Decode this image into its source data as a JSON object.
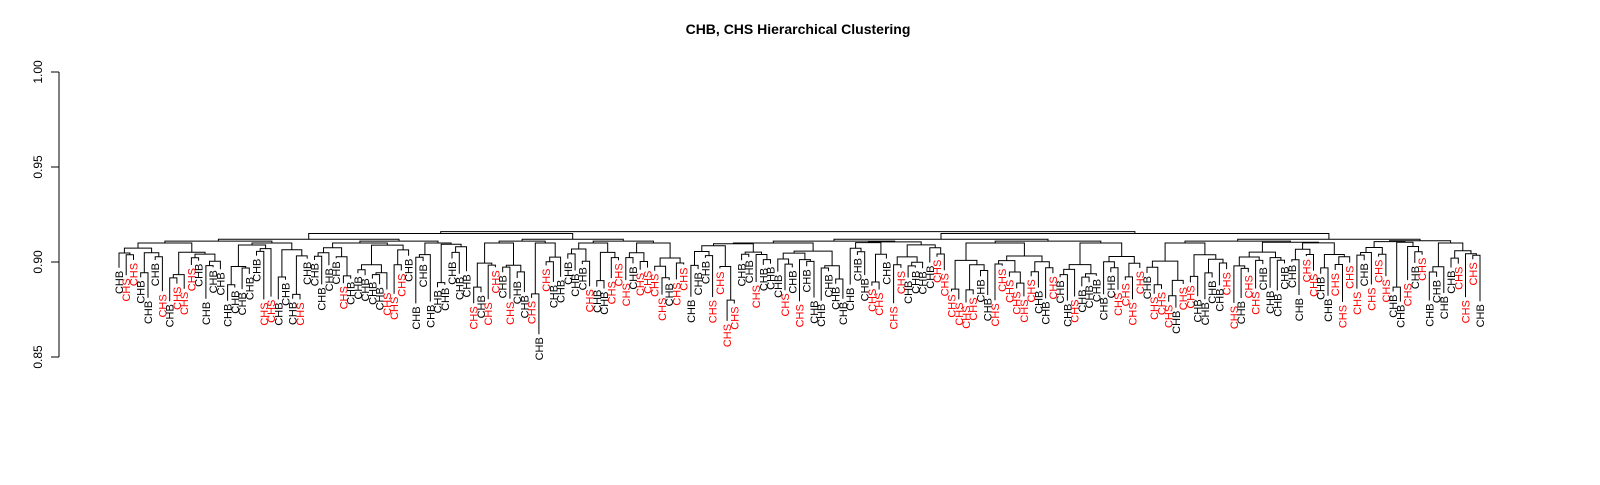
{
  "chart_data": {
    "type": "dendrogram",
    "title": "CHB, CHS Hierarchical Clustering",
    "xlabel": "",
    "ylabel": "",
    "ylim": [
      0.85,
      1.0
    ],
    "yticks": [
      0.85,
      0.9,
      0.95,
      1.0
    ],
    "ytick_labels": [
      "0.85",
      "0.90",
      "0.95",
      "1.00"
    ],
    "grid": false,
    "groups": [
      {
        "name": "CHB",
        "color": "#000000"
      },
      {
        "name": "CHS",
        "color": "#FF0000"
      }
    ],
    "root_height": 0.916,
    "top_split_heights": [
      0.916,
      0.915,
      0.912,
      0.911,
      0.91
    ],
    "outlier_leaves": [
      {
        "label": "CHS",
        "merge_height": 0.862
      },
      {
        "label": "CHS",
        "merge_height": 0.876
      },
      {
        "label": "CHS",
        "merge_height": 0.869
      },
      {
        "label": "CHS",
        "merge_height": 0.885
      }
    ],
    "typical_leaf_merge_range": [
      0.878,
      0.904
    ],
    "leaves": [
      "CHB",
      "CHS",
      "CHS",
      "CHB",
      "CHB",
      "CHB",
      "CHS",
      "CHB",
      "CHS",
      "CHS",
      "CHS",
      "CHB",
      "CHB",
      "CHB",
      "CHB",
      "CHB",
      "CHB",
      "CHB",
      "CHB",
      "CHB",
      "CHS",
      "CHS",
      "CHB",
      "CHB",
      "CHB",
      "CHS",
      "CHB",
      "CHB",
      "CHB",
      "CHB",
      "CHB",
      "CHS",
      "CHB",
      "CHB",
      "CHB",
      "CHB",
      "CHB",
      "CHS",
      "CHS",
      "CHS",
      "CHB",
      "CHB",
      "CHB",
      "CHB",
      "CHB",
      "CHB",
      "CHB",
      "CHB",
      "CHB",
      "CHS",
      "CHB",
      "CHS",
      "CHS",
      "CHB",
      "CHS",
      "CHB",
      "CHB",
      "CHS",
      "CHB",
      "CHS",
      "CHB",
      "CHB",
      "CHB",
      "CHB",
      "CHB",
      "CHS",
      "CHB",
      "CHB",
      "CHS",
      "CHS",
      "CHS",
      "CHB",
      "CHS",
      "CHS",
      "CHS",
      "CHS",
      "CHB",
      "CHS",
      "CHS",
      "CHB",
      "CHB",
      "CHB",
      "CHS",
      "CHS",
      "CHS",
      "CHS",
      "CHB",
      "CHB",
      "CHS",
      "CHB",
      "CHB",
      "CHB",
      "CHS",
      "CHB",
      "CHS",
      "CHB",
      "CHB",
      "CHB",
      "CHB",
      "CHB",
      "CHB",
      "CHB",
      "CHB",
      "CHB",
      "CHS",
      "CHS",
      "CHB",
      "CHS",
      "CHS",
      "CHB",
      "CHB",
      "CHB",
      "CHB",
      "CHS",
      "CHS",
      "CHS",
      "CHS",
      "CHS",
      "CHS",
      "CHB",
      "CHB",
      "CHS",
      "CHS",
      "CHS",
      "CHS",
      "CHS",
      "CHS",
      "CHB",
      "CHB",
      "CHS",
      "CHB",
      "CHB",
      "CHS",
      "CHB",
      "CHB",
      "CHB",
      "CHB",
      "CHB",
      "CHS",
      "CHS",
      "CHS",
      "CHS",
      "CHB",
      "CHS",
      "CHS",
      "CHS",
      "CHB",
      "CHS",
      "CHS",
      "CHB",
      "CHB",
      "CHB",
      "CHB",
      "CHS",
      "CHS",
      "CHB",
      "CHS",
      "CHS",
      "CHB",
      "CHB",
      "CHB",
      "CHB",
      "CHB",
      "CHB",
      "CHS",
      "CHS",
      "CHB",
      "CHB",
      "CHS",
      "CHS",
      "CHS",
      "CHS",
      "CHB",
      "CHS",
      "CHS",
      "CHS",
      "CHB",
      "CHB",
      "CHS",
      "CHB",
      "CHS",
      "CHB",
      "CHB",
      "CHB",
      "CHB",
      "CHS",
      "CHS",
      "CHS",
      "CHB"
    ]
  }
}
